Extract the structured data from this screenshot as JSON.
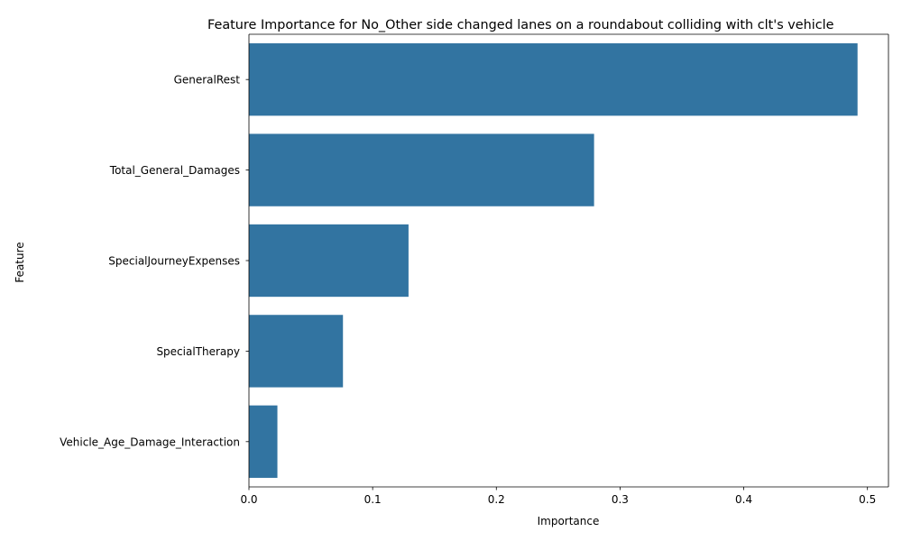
{
  "chart_data": {
    "type": "bar",
    "orientation": "horizontal",
    "title": "Feature Importance for No_Other side changed lanes on a roundabout colliding with clt's vehicle",
    "xlabel": "Importance",
    "ylabel": "Feature",
    "categories": [
      "GeneralRest",
      "Total_General_Damages",
      "SpecialJourneyExpenses",
      "SpecialTherapy",
      "Vehicle_Age_Damage_Interaction"
    ],
    "values": [
      0.492,
      0.279,
      0.129,
      0.076,
      0.023
    ],
    "xlim": [
      0,
      0.517
    ],
    "xticks": [
      0.0,
      0.1,
      0.2,
      0.3,
      0.4,
      0.5
    ],
    "xtick_labels": [
      "0.0",
      "0.1",
      "0.2",
      "0.3",
      "0.4",
      "0.5"
    ],
    "bar_color": "#3274a1",
    "grid": false,
    "legend": "none"
  }
}
